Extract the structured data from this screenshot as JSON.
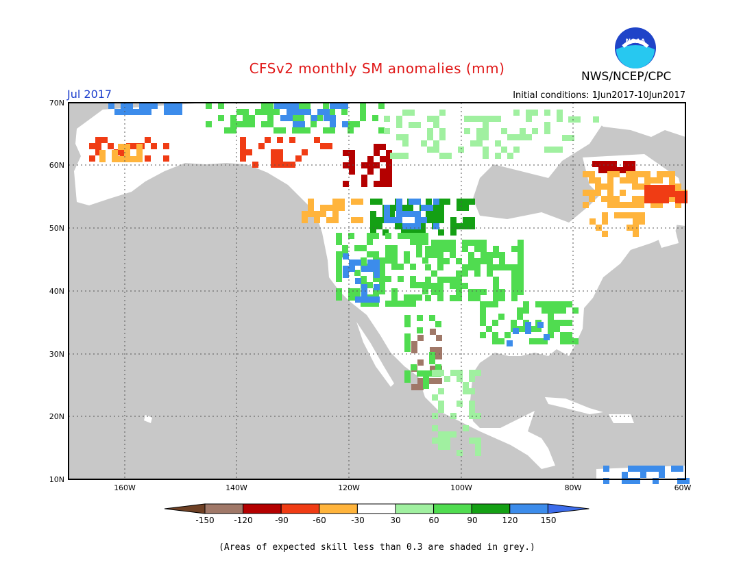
{
  "header": {
    "title": "CFSv2 monthly SM anomalies (mm)",
    "period": "Jul 2017",
    "initial_conditions": "Initial conditions: 1Jun2017-10Jun2017",
    "agency": "NWS/NCEP/CPC",
    "logo_text": "NOAA"
  },
  "map": {
    "lat_labels": [
      "70N",
      "60N",
      "50N",
      "40N",
      "30N",
      "20N",
      "10N"
    ],
    "lon_labels": [
      "160W",
      "140W",
      "120W",
      "100W",
      "80W",
      "60W"
    ],
    "ocean_color": "#c8c8c8",
    "land_color": "#ffffff"
  },
  "legend": {
    "ticks": [
      "-150",
      "-120",
      "-90",
      "-60",
      "-30",
      "30",
      "60",
      "90",
      "120",
      "150"
    ],
    "colors": [
      "#6e4024",
      "#a07868",
      "#b40000",
      "#f03c14",
      "#ffb43c",
      "#ffffff",
      "#a0f0a0",
      "#50dc50",
      "#14a014",
      "#3c8ceb",
      "#3c6ceb"
    ]
  },
  "footnote": "(Areas of expected skill less than 0.3 are shaded in grey.)"
}
